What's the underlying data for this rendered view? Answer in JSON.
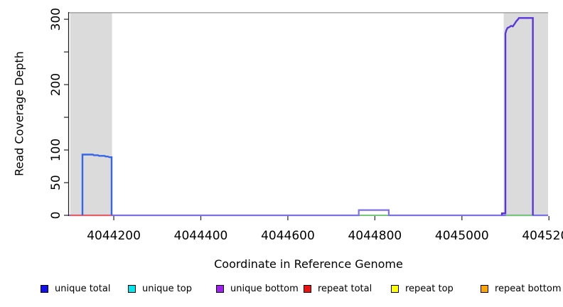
{
  "figure": {
    "x_label": "Coordinate in Reference Genome",
    "y_label": "Read Coverage Depth"
  },
  "legend": {
    "items": [
      {
        "label": "unique total",
        "color": "#1111ee"
      },
      {
        "label": "unique top",
        "color": "#00e5ee"
      },
      {
        "label": "unique bottom",
        "color": "#a020f0"
      },
      {
        "label": "repeat total",
        "color": "#ee1111"
      },
      {
        "label": "repeat top",
        "color": "#ffff00"
      },
      {
        "label": "repeat bottom",
        "color": "#ffa500"
      }
    ]
  },
  "chart_data": {
    "type": "line",
    "title": "",
    "xlabel": "Coordinate in Reference Genome",
    "ylabel": "Read Coverage Depth",
    "x_range": [
      4044097,
      4045198
    ],
    "y_range": [
      0,
      311
    ],
    "grid": false,
    "legend_position": "bottom",
    "x_ticks": [
      {
        "value": 4044200,
        "label": "4044200"
      },
      {
        "value": 4044400,
        "label": "4044400"
      },
      {
        "value": 4044600,
        "label": "4044600"
      },
      {
        "value": 4044800,
        "label": "4044800"
      },
      {
        "value": 4045000,
        "label": "4045000"
      },
      {
        "value": 4045200,
        "label": "4045200"
      }
    ],
    "y_ticks": [
      {
        "value": 0,
        "label": "0"
      },
      {
        "value": 50,
        "label": "50"
      },
      {
        "value": 100,
        "label": "100"
      },
      {
        "value": 150,
        "label": ""
      },
      {
        "value": 200,
        "label": "200"
      },
      {
        "value": 250,
        "label": ""
      },
      {
        "value": 300,
        "label": "300"
      }
    ],
    "highlight_regions": [
      {
        "x_from": 4044100,
        "x_to": 4044196,
        "fill": "#dbdbdb"
      },
      {
        "x_from": 4045096,
        "x_to": 4045198,
        "fill": "#dbdbdb"
      }
    ],
    "top_border": {
      "value": 310,
      "color": "#a3a3a3"
    },
    "series": [
      {
        "name": "unique-baseline",
        "color": "#7d71e6",
        "width": 2.2,
        "points": [
          [
            4044097,
            0
          ],
          [
            4044763,
            0
          ],
          [
            4044763,
            8
          ],
          [
            4044832,
            8
          ],
          [
            4044832,
            0
          ],
          [
            4045198,
            0
          ]
        ]
      },
      {
        "name": "repeat-total-baseline",
        "color": "#e86060",
        "width": 2,
        "points": [
          [
            4044100,
            0
          ],
          [
            4044197,
            0
          ]
        ]
      },
      {
        "name": "unique-top-baseline-mid",
        "color": "#77c877",
        "width": 2,
        "points": [
          [
            4044765,
            0
          ],
          [
            4044830,
            0
          ]
        ]
      },
      {
        "name": "unique-top-baseline-right",
        "color": "#77c877",
        "width": 2,
        "points": [
          [
            4045101,
            0
          ],
          [
            4045162,
            0
          ]
        ]
      },
      {
        "name": "unique-total-left-peak",
        "color": "#3565e8",
        "width": 2.4,
        "points": [
          [
            4044128,
            0
          ],
          [
            4044128,
            93
          ],
          [
            4044152,
            93
          ],
          [
            4044154,
            92
          ],
          [
            4044164,
            92
          ],
          [
            4044166,
            91
          ],
          [
            4044179,
            91
          ],
          [
            4044181,
            90
          ],
          [
            4044186,
            90
          ],
          [
            4044190,
            89
          ],
          [
            4044195,
            89
          ],
          [
            4044195,
            0
          ]
        ]
      },
      {
        "name": "unique-bottom-right-peak",
        "color": "#5a35dc",
        "width": 2.4,
        "points": [
          [
            4045092,
            0
          ],
          [
            4045092,
            3
          ],
          [
            4045100,
            3
          ],
          [
            4045100,
            278
          ],
          [
            4045102,
            283
          ],
          [
            4045105,
            287
          ],
          [
            4045109,
            288
          ],
          [
            4045113,
            290
          ],
          [
            4045117,
            289
          ],
          [
            4045121,
            293
          ],
          [
            4045125,
            297
          ],
          [
            4045129,
            300
          ],
          [
            4045131,
            302
          ],
          [
            4045163,
            302
          ],
          [
            4045163,
            0
          ]
        ]
      }
    ]
  }
}
